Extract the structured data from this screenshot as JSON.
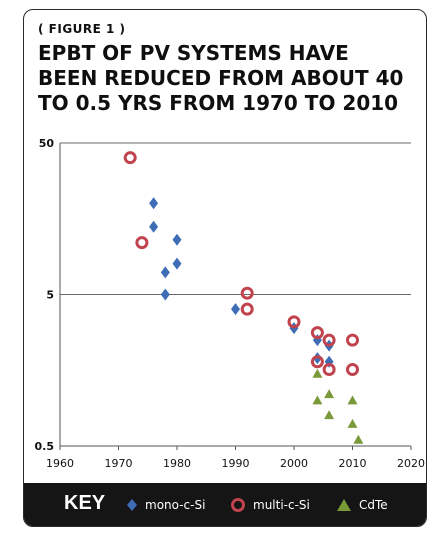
{
  "figure_label": "( FIGURE 1 )",
  "title": "EPBT OF PV SYSTEMS HAVE\nBEEN REDUCED FROM ABOUT 40\nTO 0.5 YRS FROM 1970 TO 2010",
  "key": {
    "title": "KEY",
    "items": [
      {
        "label": "mono-c-Si",
        "marker": "diamond",
        "color": "#3f6db5"
      },
      {
        "label": "multi-c-Si",
        "marker": "ring",
        "color": "#c0434e"
      },
      {
        "label": "CdTe",
        "marker": "triangle",
        "color": "#7a9a3a"
      }
    ]
  },
  "chart_data": {
    "type": "scatter",
    "title": "",
    "xlabel": "",
    "ylabel": "",
    "x_scale": "linear",
    "y_scale": "log",
    "xlim": [
      1960,
      2020
    ],
    "ylim": [
      0.5,
      50
    ],
    "x_ticks": [
      "1960",
      "1970",
      "1980",
      "1990",
      "2000",
      "2010",
      "2020"
    ],
    "y_ticks": [
      "0.5",
      "5",
      "50"
    ],
    "grid": "horizontal at 5 and 50",
    "legend": "bottom",
    "series": [
      {
        "name": "mono-c-Si",
        "marker": "diamond",
        "color": "#3f6db5",
        "points": [
          [
            1976,
            20
          ],
          [
            1976,
            14
          ],
          [
            1980,
            11.5
          ],
          [
            1980,
            8
          ],
          [
            1978,
            7
          ],
          [
            1978,
            5
          ],
          [
            1990,
            4
          ],
          [
            2000,
            3
          ],
          [
            2004,
            2.5
          ],
          [
            2006,
            2.3
          ],
          [
            2004,
            1.9
          ],
          [
            2006,
            1.8
          ]
        ]
      },
      {
        "name": "multi-c-Si",
        "marker": "ring",
        "color": "#c0434e",
        "points": [
          [
            1972,
            40
          ],
          [
            1974,
            11
          ],
          [
            1992,
            5.1
          ],
          [
            1992,
            4
          ],
          [
            2000,
            3.3
          ],
          [
            2004,
            2.8
          ],
          [
            2006,
            2.5
          ],
          [
            2010,
            2.5
          ],
          [
            2004,
            1.8
          ],
          [
            2006,
            1.6
          ],
          [
            2010,
            1.6
          ]
        ]
      },
      {
        "name": "CdTe",
        "marker": "triangle",
        "color": "#7a9a3a",
        "points": [
          [
            2004,
            1.5
          ],
          [
            2006,
            1.1
          ],
          [
            2004,
            1.0
          ],
          [
            2010,
            1.0
          ],
          [
            2006,
            0.8
          ],
          [
            2010,
            0.7
          ],
          [
            2011,
            0.55
          ]
        ]
      }
    ]
  }
}
